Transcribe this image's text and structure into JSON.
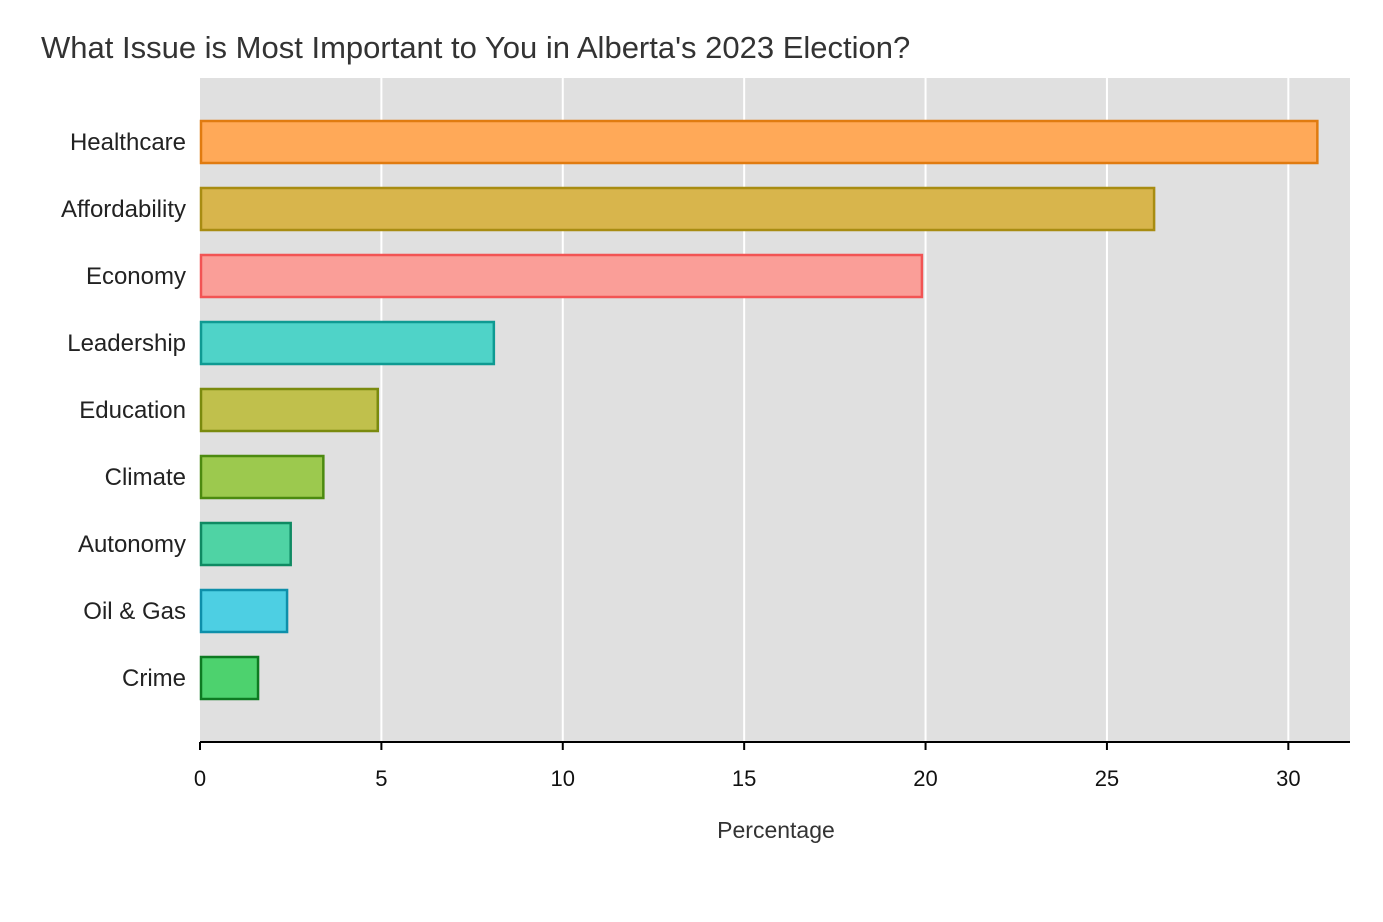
{
  "chart_data": {
    "type": "bar",
    "orientation": "horizontal",
    "title": "What Issue is Most Important to You in Alberta's 2023 Election?",
    "xlabel": "Percentage",
    "ylabel": "",
    "xlim": [
      0,
      31.7
    ],
    "xticks": [
      0,
      5,
      10,
      15,
      20,
      25,
      30
    ],
    "grid": true,
    "legend": "none",
    "categories": [
      "Healthcare",
      "Affordability",
      "Economy",
      "Leadership",
      "Education",
      "Climate",
      "Autonomy",
      "Oil & Gas",
      "Crime"
    ],
    "values": [
      30.8,
      26.3,
      19.9,
      8.1,
      4.9,
      3.4,
      2.5,
      2.4,
      1.6
    ],
    "colors": [
      {
        "fill": "#FFA958",
        "stroke": "#E07B10"
      },
      {
        "fill": "#D8B54C",
        "stroke": "#A88C12"
      },
      {
        "fill": "#FA9E98",
        "stroke": "#F25454"
      },
      {
        "fill": "#4FD3C8",
        "stroke": "#0F9A92"
      },
      {
        "fill": "#C0C04C",
        "stroke": "#7A8A0E"
      },
      {
        "fill": "#9CC94E",
        "stroke": "#4C8A10"
      },
      {
        "fill": "#4FD3A4",
        "stroke": "#0F8A62"
      },
      {
        "fill": "#4DCFE3",
        "stroke": "#0E8FAA"
      },
      {
        "fill": "#4DD26E",
        "stroke": "#0E7A22"
      }
    ],
    "panel_background": "#E0E0E0",
    "gridline_color": "#FFFFFF"
  }
}
